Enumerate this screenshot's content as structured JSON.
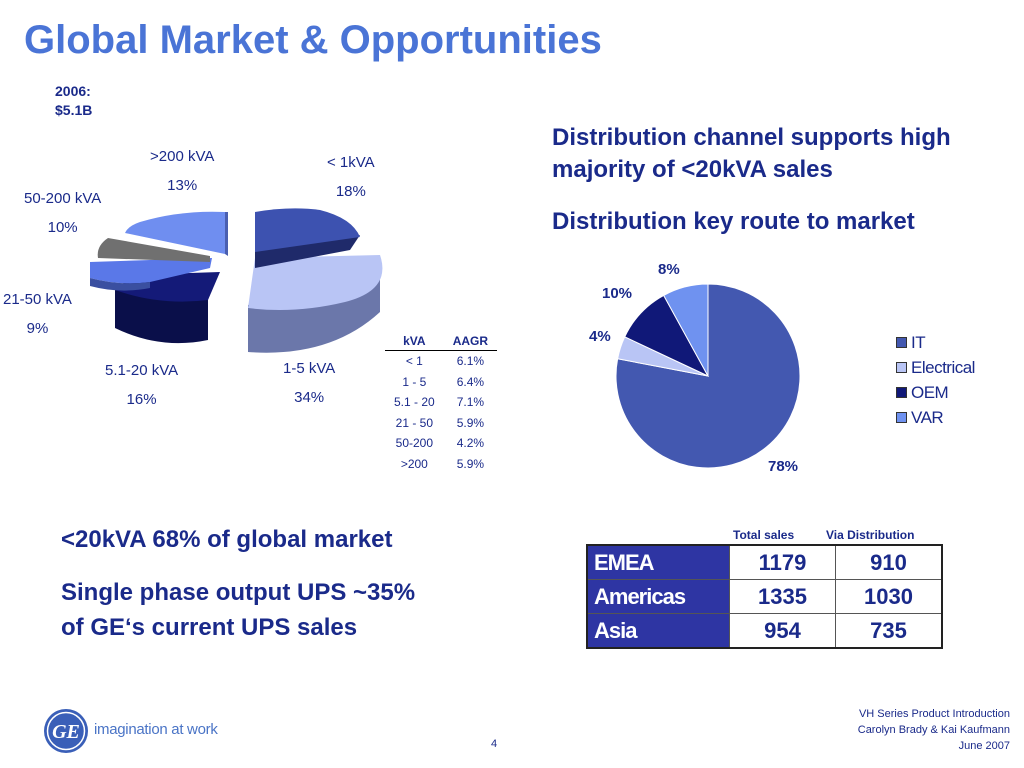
{
  "title": "Global Market & Opportunities",
  "year_label": "2006:",
  "market_size": "$5.1B",
  "segments": [
    {
      "label": ">200 kVA",
      "pct": "13%",
      "value": 13,
      "color": "#6f8ef0"
    },
    {
      "label": "< 1kVA",
      "pct": "18%",
      "value": 18,
      "color": "#3d52b0"
    },
    {
      "label": "1-5 kVA",
      "pct": "34%",
      "value": 34,
      "color": "#b9c5f5"
    },
    {
      "label": "5.1-20 kVA",
      "pct": "16%",
      "value": 16,
      "color": "#141a78"
    },
    {
      "label": "21-50 kVA",
      "pct": "9%",
      "value": 9,
      "color": "#5a78e8"
    },
    {
      "label": "50-200 kVA",
      "pct": "10%",
      "value": 10,
      "color": "#707070"
    }
  ],
  "aagr_table": {
    "headers": [
      "kVA",
      "AAGR"
    ],
    "rows": [
      [
        "< 1",
        "6.1%"
      ],
      [
        "1 - 5",
        "6.4%"
      ],
      [
        "5.1 - 20",
        "7.1%"
      ],
      [
        "21 - 50",
        "5.9%"
      ],
      [
        "50-200",
        "4.2%"
      ],
      [
        ">200",
        "5.9%"
      ]
    ]
  },
  "right_headline_1": "Distribution channel supports high majority of <20kVA sales",
  "right_headline_2": "Distribution key route to market",
  "chart_data": {
    "type": "pie",
    "categories": [
      "IT",
      "Electrical",
      "OEM",
      "VAR"
    ],
    "values": [
      78,
      4,
      10,
      8
    ],
    "data_labels": [
      "78%",
      "4%",
      "10%",
      "8%"
    ],
    "colors": [
      "#4358b0",
      "#b9c5f5",
      "#101878",
      "#6f92f0"
    ],
    "legend_position": "right",
    "title": ""
  },
  "left_headline_1": "<20kVA 68% of global market",
  "left_headline_2": "Single phase output UPS ~35% of GE‘s current UPS sales",
  "sales_table": {
    "col_headers": [
      "Total sales",
      "Via Distribution"
    ],
    "rows": [
      {
        "region": "EMEA",
        "total": "1179",
        "dist": "910"
      },
      {
        "region": "Americas",
        "total": "1335",
        "dist": "1030"
      },
      {
        "region": "Asia",
        "total": "954",
        "dist": "735"
      }
    ]
  },
  "footer": {
    "line1": "VH Series Product Introduction",
    "line2": "Carolyn Brady & Kai Kaufmann",
    "line3": "June 2007",
    "page": "4",
    "tagline": "imagination at work",
    "logo_text": "GE"
  }
}
